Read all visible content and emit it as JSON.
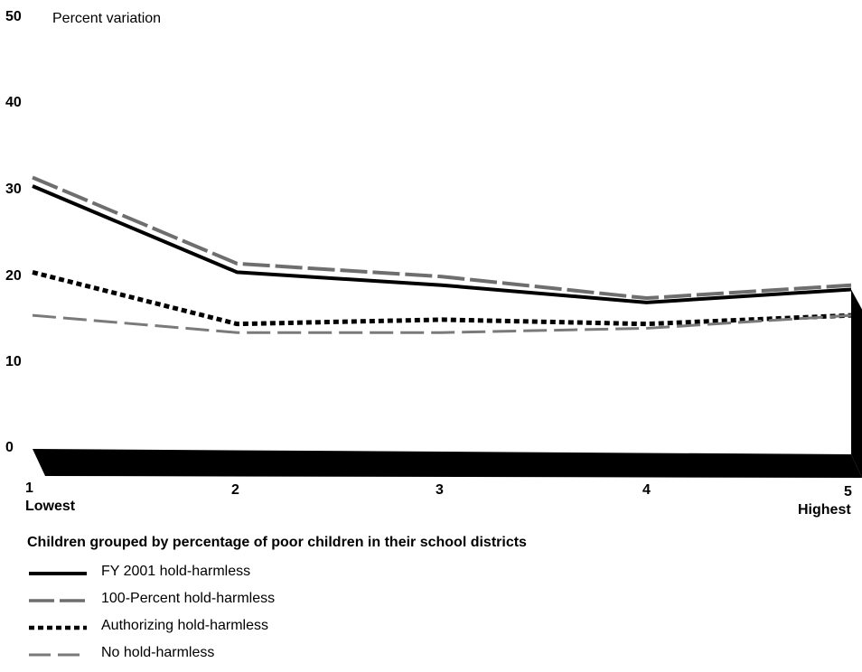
{
  "chart_data": {
    "type": "line",
    "ylabel": "Percent variation",
    "xlabel": "Children grouped by percentage of poor children in their school districts",
    "ylim": [
      0,
      50
    ],
    "yticks": [
      "0",
      "10",
      "20",
      "30",
      "40",
      "50"
    ],
    "categories": [
      "1",
      "2",
      "3",
      "4",
      "5"
    ],
    "category_sublabels": [
      "Lowest",
      "",
      "",
      "",
      "Highest"
    ],
    "series": [
      {
        "name": "FY 2001 hold-harmless",
        "style": "solid",
        "color": "#000000",
        "values": [
          30.5,
          20.5,
          19,
          17,
          18.5
        ]
      },
      {
        "name": "100-Percent hold-harmless",
        "style": "hatched-dash",
        "color": "#6e6e6e",
        "values": [
          31.5,
          21.5,
          20,
          17.5,
          19
        ]
      },
      {
        "name": "Authorizing  hold-harmless",
        "style": "dotted",
        "color": "#000000",
        "values": [
          20.5,
          14.5,
          15,
          14.5,
          15.5
        ]
      },
      {
        "name": "No hold-harmless",
        "style": "hatched-dash-light",
        "color": "#7a7a7a",
        "values": [
          15.5,
          13.5,
          13.5,
          14,
          15.5
        ]
      }
    ],
    "grid": false,
    "legend_position": "bottom-left"
  }
}
